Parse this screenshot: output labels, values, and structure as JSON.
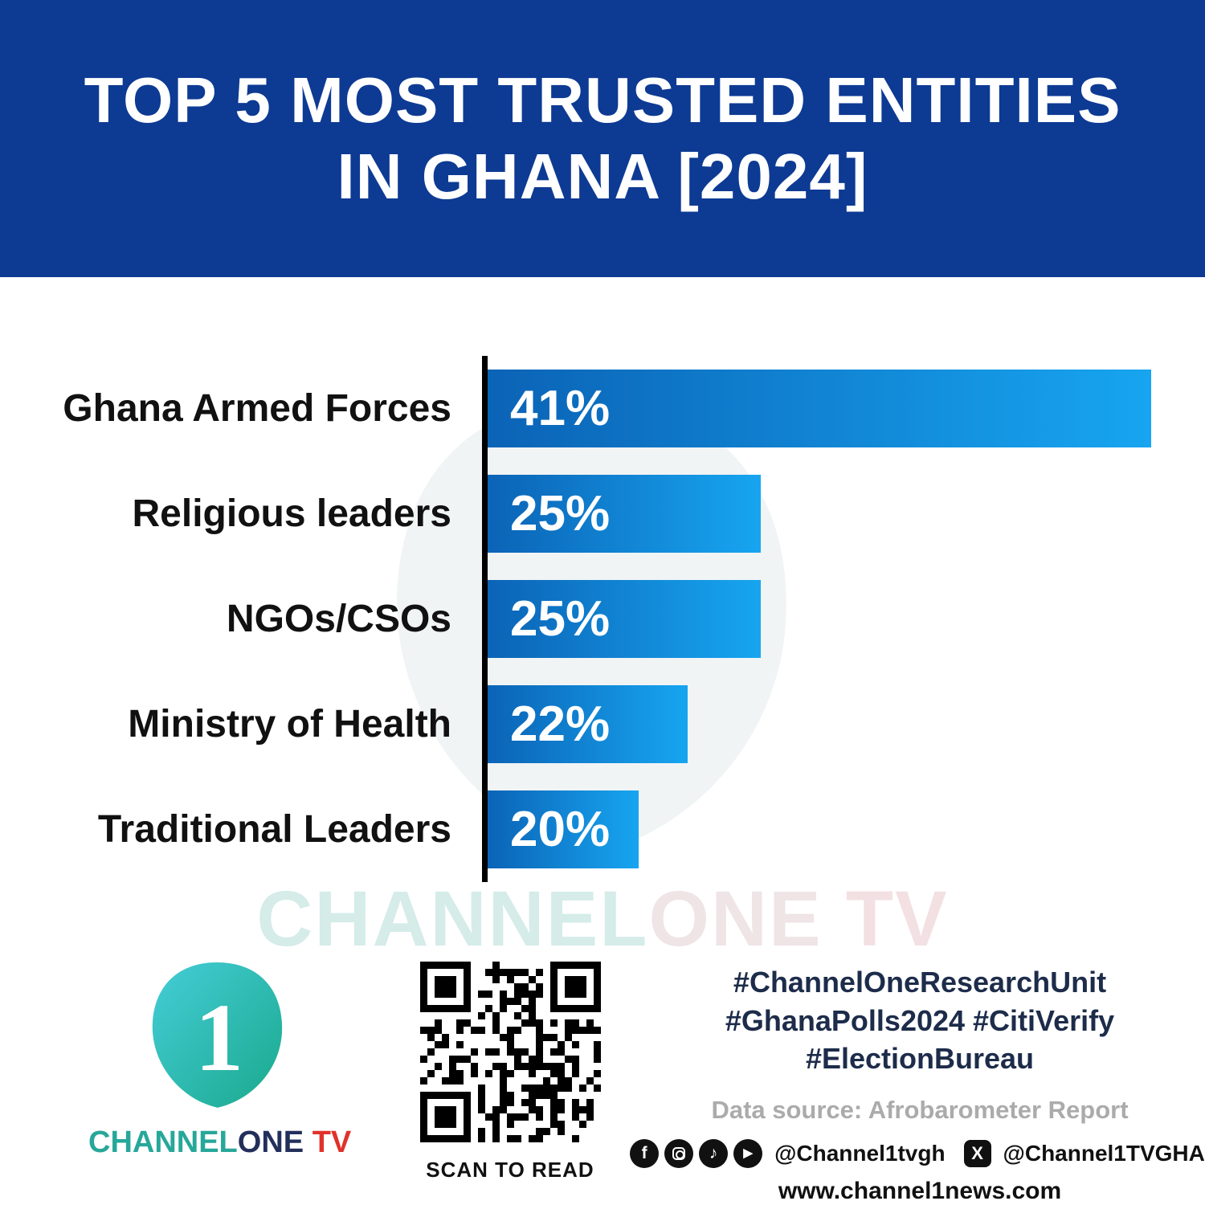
{
  "header": {
    "title_line1": "TOP 5 MOST TRUSTED ENTITIES",
    "title_line2": "IN GHANA [2024]"
  },
  "chart_data": {
    "type": "bar",
    "orientation": "horizontal",
    "title": "TOP 5 MOST TRUSTED ENTITIES IN GHANA [2024]",
    "categories": [
      "Ghana Armed Forces",
      "Religious leaders",
      "NGOs/CSOs",
      "Ministry of Health",
      "Traditional Leaders"
    ],
    "values": [
      41,
      25,
      25,
      22,
      20
    ],
    "value_labels": [
      "41%",
      "25%",
      "25%",
      "22%",
      "20%"
    ],
    "unit": "%",
    "xlim": [
      0,
      44
    ],
    "grid": false,
    "legend": "none",
    "bar_gradient": [
      "#0b63b6",
      "#17a5f0"
    ],
    "axis_color": "#000000"
  },
  "watermark": {
    "channel": "CHANNEL",
    "one": "ONE",
    "tv": " TV"
  },
  "footer": {
    "logo": {
      "numeral": "1",
      "channel": "CHANNEL",
      "one": "ONE",
      "tv": " TV"
    },
    "qr_caption": "SCAN TO READ",
    "hashtags": [
      "#ChannelOneResearchUnit",
      "#GhanaPolls2024 #CitiVerify",
      "#ElectionBureau"
    ],
    "data_source": "Data source: Afrobarometer Report",
    "social": [
      {
        "name": "facebook",
        "glyph": "f"
      },
      {
        "name": "instagram",
        "glyph": ""
      },
      {
        "name": "tiktok",
        "glyph": "♪"
      },
      {
        "name": "youtube",
        "glyph": "▶"
      },
      {
        "name": "x",
        "glyph": "X"
      }
    ],
    "handle_primary": "@Channel1tvgh",
    "handle_x": "@Channel1TVGHA",
    "website": "www.channel1news.com"
  },
  "colors": {
    "banner": "#0d3a93",
    "bar_start": "#0b63b6",
    "bar_end": "#17a5f0",
    "hashtag_text": "#1d2c4a",
    "source_text": "#ababab",
    "logo_teal": "#27a79a",
    "logo_dark": "#232f5b",
    "logo_red": "#e0322a"
  }
}
